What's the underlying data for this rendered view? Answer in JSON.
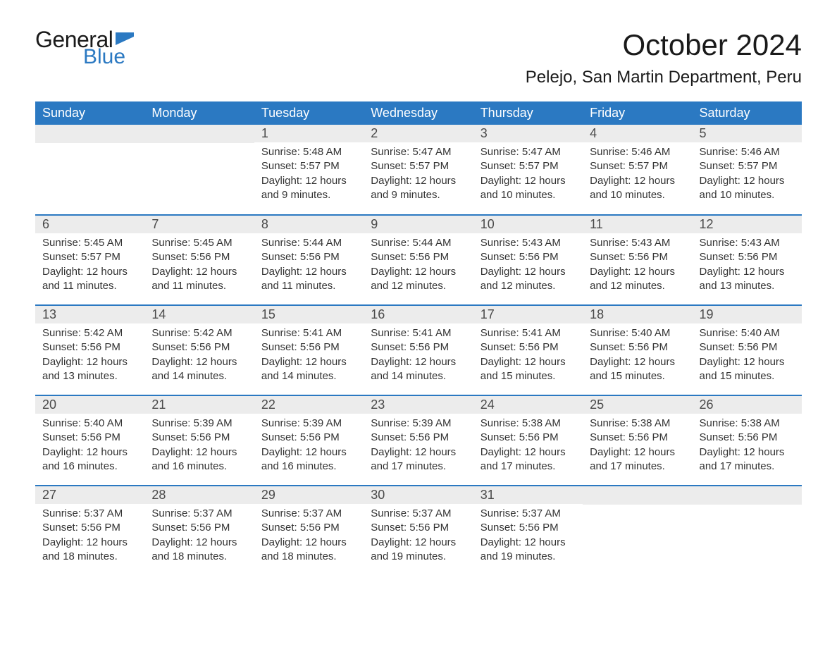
{
  "logo": {
    "text1": "General",
    "text2": "Blue",
    "flag_color": "#2b79c2"
  },
  "title": "October 2024",
  "location": "Pelejo, San Martin Department, Peru",
  "colors": {
    "header_bg": "#2b79c2",
    "header_text": "#ffffff",
    "daynum_bg": "#ececec",
    "row_divider": "#2b79c2",
    "body_text": "#333333",
    "background": "#ffffff"
  },
  "typography": {
    "title_fontsize": 42,
    "location_fontsize": 24,
    "weekday_fontsize": 18,
    "daynum_fontsize": 18,
    "body_fontsize": 15
  },
  "weekdays": [
    "Sunday",
    "Monday",
    "Tuesday",
    "Wednesday",
    "Thursday",
    "Friday",
    "Saturday"
  ],
  "weeks": [
    [
      null,
      null,
      {
        "n": "1",
        "sunrise": "5:48 AM",
        "sunset": "5:57 PM",
        "daylight": "12 hours and 9 minutes."
      },
      {
        "n": "2",
        "sunrise": "5:47 AM",
        "sunset": "5:57 PM",
        "daylight": "12 hours and 9 minutes."
      },
      {
        "n": "3",
        "sunrise": "5:47 AM",
        "sunset": "5:57 PM",
        "daylight": "12 hours and 10 minutes."
      },
      {
        "n": "4",
        "sunrise": "5:46 AM",
        "sunset": "5:57 PM",
        "daylight": "12 hours and 10 minutes."
      },
      {
        "n": "5",
        "sunrise": "5:46 AM",
        "sunset": "5:57 PM",
        "daylight": "12 hours and 10 minutes."
      }
    ],
    [
      {
        "n": "6",
        "sunrise": "5:45 AM",
        "sunset": "5:57 PM",
        "daylight": "12 hours and 11 minutes."
      },
      {
        "n": "7",
        "sunrise": "5:45 AM",
        "sunset": "5:56 PM",
        "daylight": "12 hours and 11 minutes."
      },
      {
        "n": "8",
        "sunrise": "5:44 AM",
        "sunset": "5:56 PM",
        "daylight": "12 hours and 11 minutes."
      },
      {
        "n": "9",
        "sunrise": "5:44 AM",
        "sunset": "5:56 PM",
        "daylight": "12 hours and 12 minutes."
      },
      {
        "n": "10",
        "sunrise": "5:43 AM",
        "sunset": "5:56 PM",
        "daylight": "12 hours and 12 minutes."
      },
      {
        "n": "11",
        "sunrise": "5:43 AM",
        "sunset": "5:56 PM",
        "daylight": "12 hours and 12 minutes."
      },
      {
        "n": "12",
        "sunrise": "5:43 AM",
        "sunset": "5:56 PM",
        "daylight": "12 hours and 13 minutes."
      }
    ],
    [
      {
        "n": "13",
        "sunrise": "5:42 AM",
        "sunset": "5:56 PM",
        "daylight": "12 hours and 13 minutes."
      },
      {
        "n": "14",
        "sunrise": "5:42 AM",
        "sunset": "5:56 PM",
        "daylight": "12 hours and 14 minutes."
      },
      {
        "n": "15",
        "sunrise": "5:41 AM",
        "sunset": "5:56 PM",
        "daylight": "12 hours and 14 minutes."
      },
      {
        "n": "16",
        "sunrise": "5:41 AM",
        "sunset": "5:56 PM",
        "daylight": "12 hours and 14 minutes."
      },
      {
        "n": "17",
        "sunrise": "5:41 AM",
        "sunset": "5:56 PM",
        "daylight": "12 hours and 15 minutes."
      },
      {
        "n": "18",
        "sunrise": "5:40 AM",
        "sunset": "5:56 PM",
        "daylight": "12 hours and 15 minutes."
      },
      {
        "n": "19",
        "sunrise": "5:40 AM",
        "sunset": "5:56 PM",
        "daylight": "12 hours and 15 minutes."
      }
    ],
    [
      {
        "n": "20",
        "sunrise": "5:40 AM",
        "sunset": "5:56 PM",
        "daylight": "12 hours and 16 minutes."
      },
      {
        "n": "21",
        "sunrise": "5:39 AM",
        "sunset": "5:56 PM",
        "daylight": "12 hours and 16 minutes."
      },
      {
        "n": "22",
        "sunrise": "5:39 AM",
        "sunset": "5:56 PM",
        "daylight": "12 hours and 16 minutes."
      },
      {
        "n": "23",
        "sunrise": "5:39 AM",
        "sunset": "5:56 PM",
        "daylight": "12 hours and 17 minutes."
      },
      {
        "n": "24",
        "sunrise": "5:38 AM",
        "sunset": "5:56 PM",
        "daylight": "12 hours and 17 minutes."
      },
      {
        "n": "25",
        "sunrise": "5:38 AM",
        "sunset": "5:56 PM",
        "daylight": "12 hours and 17 minutes."
      },
      {
        "n": "26",
        "sunrise": "5:38 AM",
        "sunset": "5:56 PM",
        "daylight": "12 hours and 17 minutes."
      }
    ],
    [
      {
        "n": "27",
        "sunrise": "5:37 AM",
        "sunset": "5:56 PM",
        "daylight": "12 hours and 18 minutes."
      },
      {
        "n": "28",
        "sunrise": "5:37 AM",
        "sunset": "5:56 PM",
        "daylight": "12 hours and 18 minutes."
      },
      {
        "n": "29",
        "sunrise": "5:37 AM",
        "sunset": "5:56 PM",
        "daylight": "12 hours and 18 minutes."
      },
      {
        "n": "30",
        "sunrise": "5:37 AM",
        "sunset": "5:56 PM",
        "daylight": "12 hours and 19 minutes."
      },
      {
        "n": "31",
        "sunrise": "5:37 AM",
        "sunset": "5:56 PM",
        "daylight": "12 hours and 19 minutes."
      },
      null,
      null
    ]
  ],
  "labels": {
    "sunrise": "Sunrise:",
    "sunset": "Sunset:",
    "daylight": "Daylight:"
  }
}
